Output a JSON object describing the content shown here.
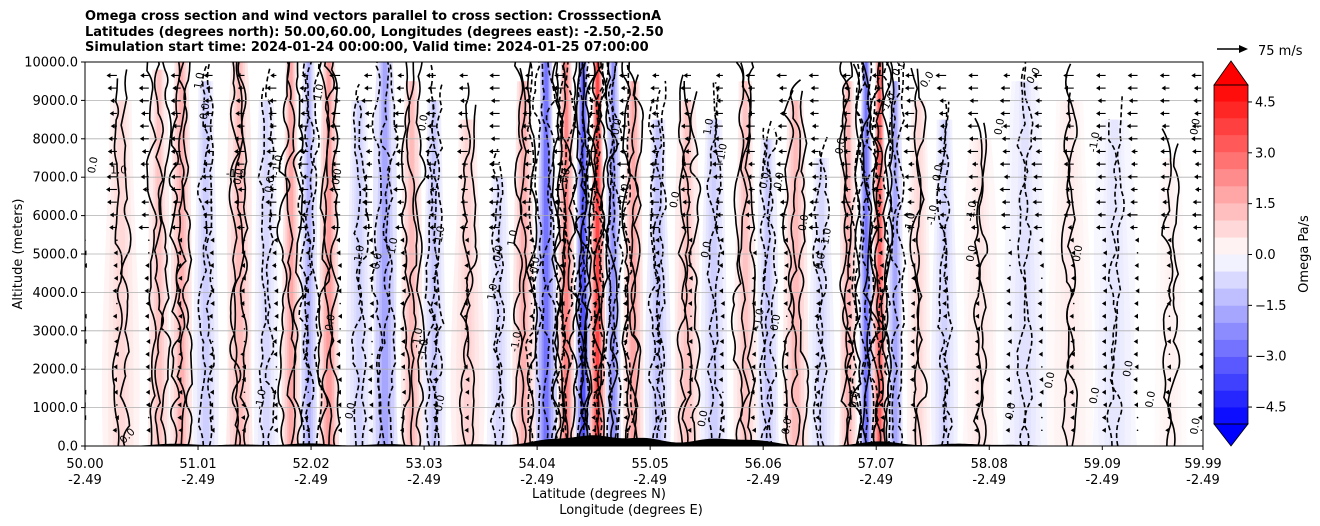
{
  "chart_data": {
    "type": "heatmap",
    "title_lines": [
      "Omega cross section and wind vectors parallel to cross section: CrosssectionA",
      "Latitudes (degrees north): 50.00,60.00, Longitudes (degrees east): -2.50,-2.50",
      "Simulation start time: 2024-01-24 00:00:00, Valid time: 2024-01-25 07:00:00"
    ],
    "ylabel": "Altitude (meters)",
    "xlabel_line1": "Latitude (degrees N)",
    "xlabel_line2": "Longitude (degrees E)",
    "ylim": [
      0,
      10000
    ],
    "xlim": [
      50.0,
      59.99
    ],
    "y_ticks": [
      {
        "value": 0,
        "label": "0.0"
      },
      {
        "value": 1000,
        "label": "1000.0"
      },
      {
        "value": 2000,
        "label": "2000.0"
      },
      {
        "value": 3000,
        "label": "3000.0"
      },
      {
        "value": 4000,
        "label": "4000.0"
      },
      {
        "value": 5000,
        "label": "5000.0"
      },
      {
        "value": 6000,
        "label": "6000.0"
      },
      {
        "value": 7000,
        "label": "7000.0"
      },
      {
        "value": 8000,
        "label": "8000.0"
      },
      {
        "value": 9000,
        "label": "9000.0"
      },
      {
        "value": 10000,
        "label": "10000.0"
      }
    ],
    "x_ticks": [
      {
        "lat": 50.0,
        "lat_label": "50.00",
        "lon_label": "-2.49"
      },
      {
        "lat": 51.01,
        "lat_label": "51.01",
        "lon_label": "-2.49"
      },
      {
        "lat": 52.02,
        "lat_label": "52.02",
        "lon_label": "-2.49"
      },
      {
        "lat": 53.03,
        "lat_label": "53.03",
        "lon_label": "-2.49"
      },
      {
        "lat": 54.04,
        "lat_label": "54.04",
        "lon_label": "-2.49"
      },
      {
        "lat": 55.05,
        "lat_label": "55.05",
        "lon_label": "-2.49"
      },
      {
        "lat": 56.06,
        "lat_label": "56.06",
        "lon_label": "-2.49"
      },
      {
        "lat": 57.07,
        "lat_label": "57.07",
        "lon_label": "-2.49"
      },
      {
        "lat": 58.08,
        "lat_label": "58.08",
        "lon_label": "-2.49"
      },
      {
        "lat": 59.09,
        "lat_label": "59.09",
        "lon_label": "-2.49"
      },
      {
        "lat": 59.99,
        "lat_label": "59.99",
        "lon_label": "-2.49"
      }
    ],
    "grid": "horizontal",
    "colorbar": {
      "label": "Omega Pa/s",
      "vmin": -5.0,
      "vmax": 5.0,
      "levels": 20,
      "extend": "both",
      "ticks": [
        {
          "value": 4.5,
          "label": "4.5"
        },
        {
          "value": 3.0,
          "label": "3.0"
        },
        {
          "value": 1.5,
          "label": "1.5"
        },
        {
          "value": 0.0,
          "label": "0.0"
        },
        {
          "value": -1.5,
          "label": "−1.5"
        },
        {
          "value": -3.0,
          "label": "−3.0"
        },
        {
          "value": -4.5,
          "label": "−4.5"
        }
      ]
    },
    "quiver_key": {
      "label": "75 m/s"
    },
    "omega_features": [
      {
        "lat": 50.32,
        "alt_top": 9000,
        "omega": 0.8
      },
      {
        "lat": 50.66,
        "alt_top": 9800,
        "omega": 1.2
      },
      {
        "lat": 50.86,
        "alt_top": 10000,
        "omega": 1.6
      },
      {
        "lat": 51.08,
        "alt_top": 9500,
        "omega": -1.0
      },
      {
        "lat": 51.38,
        "alt_top": 10000,
        "omega": 1.4
      },
      {
        "lat": 51.62,
        "alt_top": 9000,
        "omega": -0.8
      },
      {
        "lat": 51.84,
        "alt_top": 10000,
        "omega": 1.8
      },
      {
        "lat": 52.0,
        "alt_top": 10000,
        "omega": -1.5
      },
      {
        "lat": 52.18,
        "alt_top": 10000,
        "omega": 2.0
      },
      {
        "lat": 52.45,
        "alt_top": 9000,
        "omega": -0.9
      },
      {
        "lat": 52.68,
        "alt_top": 10000,
        "omega": -1.8
      },
      {
        "lat": 52.92,
        "alt_top": 9500,
        "omega": 1.4
      },
      {
        "lat": 53.12,
        "alt_top": 9000,
        "omega": -1.1
      },
      {
        "lat": 53.42,
        "alt_top": 8500,
        "omega": 0.9
      },
      {
        "lat": 53.7,
        "alt_top": 7000,
        "omega": -0.8
      },
      {
        "lat": 53.92,
        "alt_top": 9500,
        "omega": 1.6
      },
      {
        "lat": 54.12,
        "alt_top": 10000,
        "omega": -2.8
      },
      {
        "lat": 54.3,
        "alt_top": 10000,
        "omega": 2.5
      },
      {
        "lat": 54.45,
        "alt_top": 10000,
        "omega": -3.5
      },
      {
        "lat": 54.58,
        "alt_top": 10000,
        "omega": 3.8
      },
      {
        "lat": 54.72,
        "alt_top": 10000,
        "omega": -2.2
      },
      {
        "lat": 54.9,
        "alt_top": 9500,
        "omega": 1.8
      },
      {
        "lat": 55.12,
        "alt_top": 8500,
        "omega": -1.2
      },
      {
        "lat": 55.38,
        "alt_top": 9000,
        "omega": 1.2
      },
      {
        "lat": 55.62,
        "alt_top": 8500,
        "omega": -1.0
      },
      {
        "lat": 55.9,
        "alt_top": 9500,
        "omega": 1.2
      },
      {
        "lat": 56.1,
        "alt_top": 8000,
        "omega": -1.1
      },
      {
        "lat": 56.35,
        "alt_top": 9000,
        "omega": 1.4
      },
      {
        "lat": 56.58,
        "alt_top": 7500,
        "omega": -0.8
      },
      {
        "lat": 56.82,
        "alt_top": 9500,
        "omega": 1.5
      },
      {
        "lat": 56.98,
        "alt_top": 10000,
        "omega": -2.8
      },
      {
        "lat": 57.1,
        "alt_top": 10000,
        "omega": 3.2
      },
      {
        "lat": 57.24,
        "alt_top": 9500,
        "omega": -1.8
      },
      {
        "lat": 57.45,
        "alt_top": 9000,
        "omega": 0.8
      },
      {
        "lat": 57.68,
        "alt_top": 8500,
        "omega": -0.9
      },
      {
        "lat": 58.0,
        "alt_top": 8000,
        "omega": 0.5
      },
      {
        "lat": 58.4,
        "alt_top": 9500,
        "omega": -0.6
      },
      {
        "lat": 58.8,
        "alt_top": 9000,
        "omega": 0.4
      },
      {
        "lat": 59.2,
        "alt_top": 8500,
        "omega": -0.5
      },
      {
        "lat": 59.7,
        "alt_top": 7500,
        "omega": 0.3
      }
    ],
    "contour_labels": [
      {
        "text": "0.0",
        "lat": 50.1,
        "alt": 7300,
        "rot": -80
      },
      {
        "text": "1.0",
        "lat": 50.3,
        "alt": 7100,
        "rot": 0
      },
      {
        "text": "1.0",
        "lat": 51.05,
        "alt": 9500,
        "rot": -80
      },
      {
        "text": "0.0",
        "lat": 51.1,
        "alt": 8700,
        "rot": -80
      },
      {
        "text": "0.0",
        "lat": 51.4,
        "alt": 7000,
        "rot": -80
      },
      {
        "text": "-1.0",
        "lat": 51.35,
        "alt": 7000,
        "rot": 0
      },
      {
        "text": "0.0",
        "lat": 51.68,
        "alt": 6800,
        "rot": -80
      },
      {
        "text": "-1.0",
        "lat": 51.75,
        "alt": 7300,
        "rot": -80
      },
      {
        "text": "1.0",
        "lat": 52.12,
        "alt": 9200,
        "rot": -80
      },
      {
        "text": "0.0",
        "lat": 52.28,
        "alt": 7000,
        "rot": -80
      },
      {
        "text": "0.0",
        "lat": 52.22,
        "alt": 3200,
        "rot": -80
      },
      {
        "text": "1.0",
        "lat": 52.48,
        "alt": 5000,
        "rot": -80
      },
      {
        "text": "0.0",
        "lat": 52.64,
        "alt": 4800,
        "rot": -80
      },
      {
        "text": "1.0",
        "lat": 52.78,
        "alt": 5200,
        "rot": -80
      },
      {
        "text": "0.0",
        "lat": 53.05,
        "alt": 8400,
        "rot": -80
      },
      {
        "text": "1.0",
        "lat": 53.2,
        "alt": 5500,
        "rot": -80
      },
      {
        "text": "-1.0",
        "lat": 53.0,
        "alt": 2800,
        "rot": -80
      },
      {
        "text": "-1.0",
        "lat": 53.05,
        "alt": 2500,
        "rot": -80
      },
      {
        "text": "1.0",
        "lat": 53.67,
        "alt": 4000,
        "rot": -80
      },
      {
        "text": "0.0",
        "lat": 53.72,
        "alt": 5000,
        "rot": -80
      },
      {
        "text": "1.0",
        "lat": 53.85,
        "alt": 5400,
        "rot": -80
      },
      {
        "text": "0.0",
        "lat": 54.05,
        "alt": 4700,
        "rot": -80
      },
      {
        "text": "-1.0",
        "lat": 53.88,
        "alt": 2700,
        "rot": -80
      },
      {
        "text": "1.0",
        "lat": 54.32,
        "alt": 7000,
        "rot": -80
      },
      {
        "text": "0.0",
        "lat": 54.78,
        "alt": 8300,
        "rot": -80
      },
      {
        "text": "1.0",
        "lat": 54.85,
        "alt": 6600,
        "rot": -80
      },
      {
        "text": "0.0",
        "lat": 55.3,
        "alt": 6400,
        "rot": -80
      },
      {
        "text": "0.0",
        "lat": 55.58,
        "alt": 5100,
        "rot": -80
      },
      {
        "text": "1.0",
        "lat": 55.6,
        "alt": 8300,
        "rot": -80
      },
      {
        "text": "-1.0",
        "lat": 55.72,
        "alt": 7600,
        "rot": -80
      },
      {
        "text": "-1.0",
        "lat": 56.05,
        "alt": 3300,
        "rot": -80
      },
      {
        "text": "0.0",
        "lat": 56.2,
        "alt": 3200,
        "rot": -80
      },
      {
        "text": "0.0",
        "lat": 56.1,
        "alt": 6900,
        "rot": -80
      },
      {
        "text": "0.0",
        "lat": 56.23,
        "alt": 6900,
        "rot": -80
      },
      {
        "text": "0.0",
        "lat": 56.45,
        "alt": 5800,
        "rot": -80
      },
      {
        "text": "0.0",
        "lat": 56.6,
        "alt": 4800,
        "rot": -80
      },
      {
        "text": "0.0",
        "lat": 56.78,
        "alt": 7800,
        "rot": -80
      },
      {
        "text": "-1.0",
        "lat": 56.65,
        "alt": 5400,
        "rot": -80
      },
      {
        "text": "0.0",
        "lat": 56.9,
        "alt": 1200,
        "rot": -80
      },
      {
        "text": "0.0",
        "lat": 57.3,
        "alt": 9800,
        "rot": -60
      },
      {
        "text": "0.0",
        "lat": 57.55,
        "alt": 9500,
        "rot": -60
      },
      {
        "text": "-1.0",
        "lat": 57.2,
        "alt": 8900,
        "rot": -60
      },
      {
        "text": "-1.0",
        "lat": 57.4,
        "alt": 5800,
        "rot": -80
      },
      {
        "text": "-1.0",
        "lat": 57.6,
        "alt": 6000,
        "rot": -80
      },
      {
        "text": "0.0",
        "lat": 57.65,
        "alt": 7100,
        "rot": -80
      },
      {
        "text": "-1.0",
        "lat": 57.95,
        "alt": 6100,
        "rot": -80
      },
      {
        "text": "0.0",
        "lat": 57.95,
        "alt": 5000,
        "rot": -80
      },
      {
        "text": "0.0",
        "lat": 58.2,
        "alt": 8300,
        "rot": -80
      },
      {
        "text": "0.0",
        "lat": 58.5,
        "alt": 9600,
        "rot": -60
      },
      {
        "text": "0.0",
        "lat": 58.9,
        "alt": 5000,
        "rot": -80
      },
      {
        "text": "0.0",
        "lat": 58.65,
        "alt": 1700,
        "rot": -80
      },
      {
        "text": "0.0",
        "lat": 59.05,
        "alt": 1300,
        "rot": -80
      },
      {
        "text": "-1.0",
        "lat": 59.05,
        "alt": 7900,
        "rot": -80
      },
      {
        "text": "0.0",
        "lat": 59.35,
        "alt": 2000,
        "rot": -80
      },
      {
        "text": "0.0",
        "lat": 59.55,
        "alt": 1200,
        "rot": -80
      },
      {
        "text": "0.0",
        "lat": 59.95,
        "alt": 8300,
        "rot": -80
      },
      {
        "text": "0.0",
        "lat": 59.95,
        "alt": 500,
        "rot": -80
      },
      {
        "text": "-1.0",
        "lat": 51.6,
        "alt": 1200,
        "rot": -80
      },
      {
        "text": "0.0",
        "lat": 52.4,
        "alt": 900,
        "rot": -80
      },
      {
        "text": "0.0",
        "lat": 53.2,
        "alt": 1100,
        "rot": -80
      },
      {
        "text": "0.0",
        "lat": 55.55,
        "alt": 700,
        "rot": -80
      },
      {
        "text": "0.0",
        "lat": 56.3,
        "alt": 500,
        "rot": -80
      },
      {
        "text": "0.0",
        "lat": 58.3,
        "alt": 900,
        "rot": -80
      },
      {
        "text": "0.0",
        "lat": 50.4,
        "alt": 200,
        "rot": -45
      }
    ]
  }
}
